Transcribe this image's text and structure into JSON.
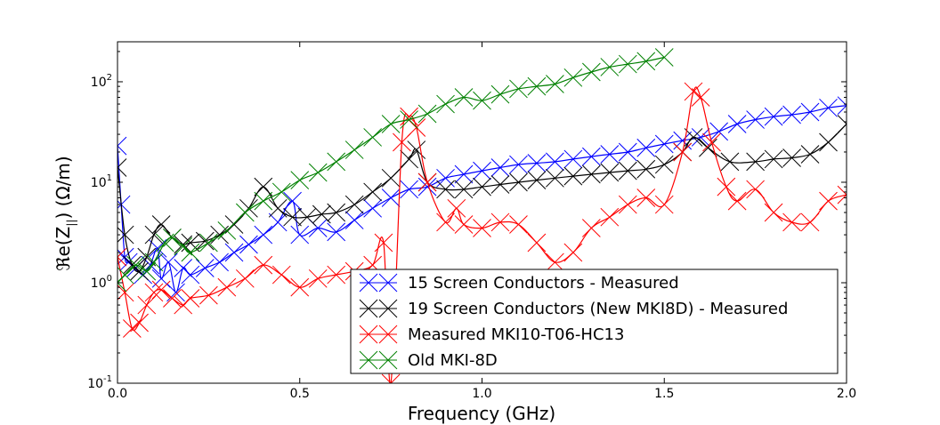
{
  "chart_data": {
    "type": "line",
    "xlabel": "Frequency (GHz)",
    "ylabel_main": "ℜe(Z",
    "ylabel_sub": "||",
    "ylabel_tail": ") (Ω/m)",
    "xlim": [
      0,
      2.0
    ],
    "ylim": [
      0.1,
      250
    ],
    "yscale": "log",
    "x_ticks": [
      0.0,
      0.5,
      1.0,
      1.5,
      2.0
    ],
    "x_tick_labels": [
      "0.0",
      "0.5",
      "1.0",
      "1.5",
      "2.0"
    ],
    "y_ticks": [
      {
        "value": 0.1,
        "base": "10",
        "exp": "-1"
      },
      {
        "value": 1,
        "base": "10",
        "exp": "0"
      },
      {
        "value": 10,
        "base": "10",
        "exp": "1"
      },
      {
        "value": 100,
        "base": "10",
        "exp": "2"
      }
    ],
    "legend_position": "lower-center",
    "series": [
      {
        "name": "15 Screen Conductors - Measured",
        "color": "#0000ff",
        "marker": "x",
        "x": [
          0.0,
          0.01,
          0.02,
          0.03,
          0.05,
          0.07,
          0.09,
          0.11,
          0.12,
          0.14,
          0.16,
          0.18,
          0.2,
          0.24,
          0.28,
          0.32,
          0.36,
          0.4,
          0.44,
          0.48,
          0.5,
          0.55,
          0.6,
          0.65,
          0.7,
          0.75,
          0.8,
          0.85,
          0.9,
          0.95,
          1.0,
          1.05,
          1.1,
          1.15,
          1.2,
          1.25,
          1.3,
          1.35,
          1.4,
          1.45,
          1.5,
          1.55,
          1.6,
          1.65,
          1.7,
          1.75,
          1.8,
          1.85,
          1.9,
          1.95,
          2.0
        ],
        "y": [
          23,
          6,
          1.8,
          1.6,
          1.4,
          1.2,
          1.5,
          2.2,
          1.1,
          1.6,
          0.8,
          1.4,
          1.2,
          1.4,
          1.6,
          2.0,
          2.4,
          3.0,
          4.0,
          6.5,
          3.0,
          3.5,
          3.2,
          4.2,
          5.5,
          7.0,
          8.5,
          9.0,
          11,
          12,
          13,
          14,
          15,
          15.5,
          16,
          17,
          18,
          19,
          20,
          22,
          24,
          26,
          28,
          32,
          38,
          42,
          45,
          47,
          50,
          55,
          58
        ]
      },
      {
        "name": "19 Screen Conductors (New MKI8D) - Measured",
        "color": "#000000",
        "marker": "x",
        "x": [
          0.0,
          0.02,
          0.04,
          0.06,
          0.08,
          0.1,
          0.12,
          0.15,
          0.18,
          0.2,
          0.24,
          0.28,
          0.32,
          0.36,
          0.4,
          0.44,
          0.48,
          0.52,
          0.56,
          0.6,
          0.65,
          0.7,
          0.75,
          0.8,
          0.82,
          0.85,
          0.9,
          0.95,
          1.0,
          1.05,
          1.1,
          1.15,
          1.2,
          1.25,
          1.3,
          1.35,
          1.4,
          1.45,
          1.5,
          1.55,
          1.58,
          1.62,
          1.68,
          1.75,
          1.8,
          1.85,
          1.9,
          1.95,
          2.0
        ],
        "y": [
          14,
          3.0,
          1.5,
          1.3,
          1.8,
          3.0,
          3.8,
          2.8,
          2.4,
          2.5,
          2.6,
          3.0,
          3.8,
          5.5,
          9.0,
          5.5,
          4.5,
          4.5,
          4.8,
          5.0,
          6.0,
          8.0,
          11,
          17,
          21,
          10,
          8.5,
          8.5,
          9.0,
          9.5,
          10,
          10.5,
          11,
          11.5,
          12,
          12.5,
          13,
          13.5,
          15,
          20,
          28,
          22,
          16,
          16,
          17,
          17.5,
          19,
          25,
          38
        ]
      },
      {
        "name": "Measured MKI10-T06-HC13",
        "color": "#ff0000",
        "marker": "x",
        "x": [
          0.0,
          0.02,
          0.04,
          0.06,
          0.08,
          0.1,
          0.12,
          0.15,
          0.18,
          0.2,
          0.25,
          0.3,
          0.35,
          0.4,
          0.45,
          0.5,
          0.55,
          0.6,
          0.65,
          0.7,
          0.73,
          0.75,
          0.78,
          0.8,
          0.82,
          0.85,
          0.9,
          0.93,
          0.95,
          1.0,
          1.05,
          1.1,
          1.15,
          1.2,
          1.25,
          1.3,
          1.35,
          1.4,
          1.45,
          1.5,
          1.55,
          1.58,
          1.6,
          1.63,
          1.67,
          1.7,
          1.75,
          1.8,
          1.85,
          1.9,
          1.95,
          2.0
        ],
        "y": [
          1.8,
          0.8,
          0.35,
          0.4,
          0.6,
          0.8,
          0.85,
          0.7,
          0.6,
          0.7,
          0.75,
          0.9,
          1.1,
          1.5,
          1.2,
          0.9,
          1.1,
          1.2,
          1.3,
          1.5,
          2.5,
          0.1,
          25,
          45,
          35,
          10,
          4.0,
          5.5,
          3.8,
          3.5,
          4.0,
          3.8,
          2.5,
          1.6,
          2.0,
          3.5,
          4.5,
          6.0,
          7.0,
          6.0,
          20,
          80,
          70,
          25,
          9.0,
          6.5,
          8.5,
          5.0,
          4.0,
          4.0,
          6.5,
          7.5
        ]
      },
      {
        "name": "Old MKI-8D",
        "color": "#008000",
        "marker": "x",
        "x": [
          0.0,
          0.02,
          0.05,
          0.08,
          0.1,
          0.13,
          0.15,
          0.18,
          0.2,
          0.25,
          0.3,
          0.35,
          0.4,
          0.45,
          0.5,
          0.55,
          0.6,
          0.65,
          0.7,
          0.75,
          0.8,
          0.85,
          0.9,
          0.95,
          1.0,
          1.05,
          1.1,
          1.15,
          1.2,
          1.25,
          1.3,
          1.35,
          1.4,
          1.45,
          1.5
        ],
        "y": [
          1.0,
          1.2,
          1.5,
          1.3,
          1.6,
          2.5,
          2.8,
          2.3,
          2.0,
          2.5,
          3.3,
          5.0,
          6.5,
          8.0,
          10.5,
          12.5,
          16,
          21,
          28,
          38,
          42,
          48,
          60,
          70,
          65,
          75,
          85,
          90,
          95,
          110,
          125,
          140,
          150,
          160,
          175
        ]
      }
    ]
  }
}
